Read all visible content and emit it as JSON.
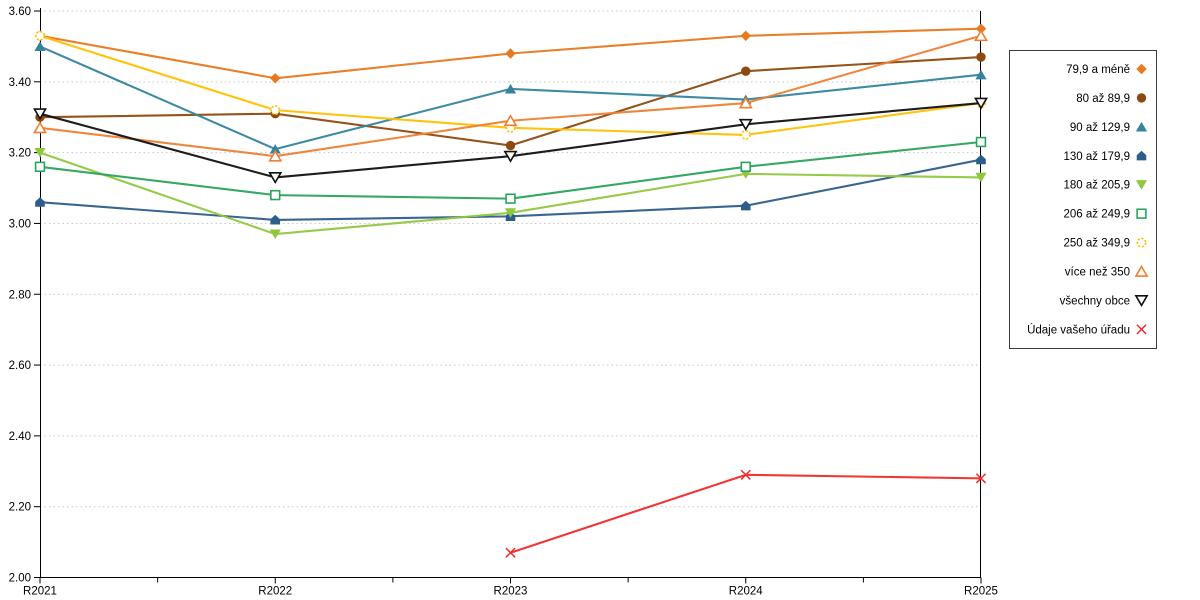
{
  "chart_data": {
    "type": "line",
    "title": "",
    "xlabel": "",
    "ylabel": "",
    "categories": [
      "R2021",
      "R2022",
      "R2023",
      "R2024",
      "R2025"
    ],
    "ylim": [
      2.0,
      3.6
    ],
    "ytick_step": 0.2,
    "ytick_labels": [
      "3.60",
      "3.40",
      "3.20",
      "3.00",
      "2.80",
      "2.60",
      "2.40",
      "2.20",
      "2.00"
    ],
    "grid": "horizontal-dotted",
    "legend_position": "right",
    "series": [
      {
        "id": "79-9-a-mene",
        "name": "79,9 a méně",
        "marker": "diamond",
        "filled": true,
        "color": "#E8791E",
        "values": [
          3.53,
          3.41,
          3.48,
          3.53,
          3.55
        ]
      },
      {
        "id": "80-az-89-9",
        "name": "80 až 89,9",
        "marker": "circle",
        "filled": true,
        "color": "#8E4A0E",
        "values": [
          3.3,
          3.31,
          3.22,
          3.43,
          3.47
        ]
      },
      {
        "id": "90-az-129-9",
        "name": "90 až 129,9",
        "marker": "triangle-up",
        "filled": true,
        "color": "#35849E",
        "values": [
          3.5,
          3.21,
          3.38,
          3.35,
          3.42
        ]
      },
      {
        "id": "130-az-179-9",
        "name": "130 až 179,9",
        "marker": "pentagon",
        "filled": true,
        "color": "#2D5E8B",
        "values": [
          3.06,
          3.01,
          3.02,
          3.05,
          3.18
        ]
      },
      {
        "id": "180-az-205-9",
        "name": "180 až 205,9",
        "marker": "triangle-down",
        "filled": true,
        "color": "#90C73E",
        "values": [
          3.2,
          2.97,
          3.03,
          3.14,
          3.13
        ]
      },
      {
        "id": "206-az-249-9",
        "name": "206 až 249,9",
        "marker": "square",
        "filled": false,
        "color": "#2AA45C",
        "values": [
          3.16,
          3.08,
          3.07,
          3.16,
          3.23
        ]
      },
      {
        "id": "250-az-349-9",
        "name": "250 až 349,9",
        "marker": "circle-dashed",
        "filled": false,
        "color": "#FFC000",
        "values": [
          3.53,
          3.32,
          3.27,
          3.25,
          3.34
        ]
      },
      {
        "id": "vice-nez-350",
        "name": "více než 350",
        "marker": "triangle-up",
        "filled": false,
        "color": "#ED8033",
        "values": [
          3.27,
          3.19,
          3.29,
          3.34,
          3.53
        ]
      },
      {
        "id": "vsechny-obce",
        "name": "všechny obce",
        "marker": "triangle-down",
        "filled": false,
        "color": "#111111",
        "values": [
          3.31,
          3.13,
          3.19,
          3.28,
          3.34
        ]
      },
      {
        "id": "udaje-vaseho-uradu",
        "name": "Údaje vašeho úřadu",
        "marker": "x",
        "filled": false,
        "color": "#F02B2B",
        "values": [
          null,
          null,
          2.07,
          2.29,
          2.28
        ]
      }
    ]
  },
  "colors": {
    "background": "#FFFFFF",
    "gridline": "#C8C8C8",
    "axis": "#000000",
    "legend_border": "#3C3C3C",
    "text": "#000000"
  }
}
